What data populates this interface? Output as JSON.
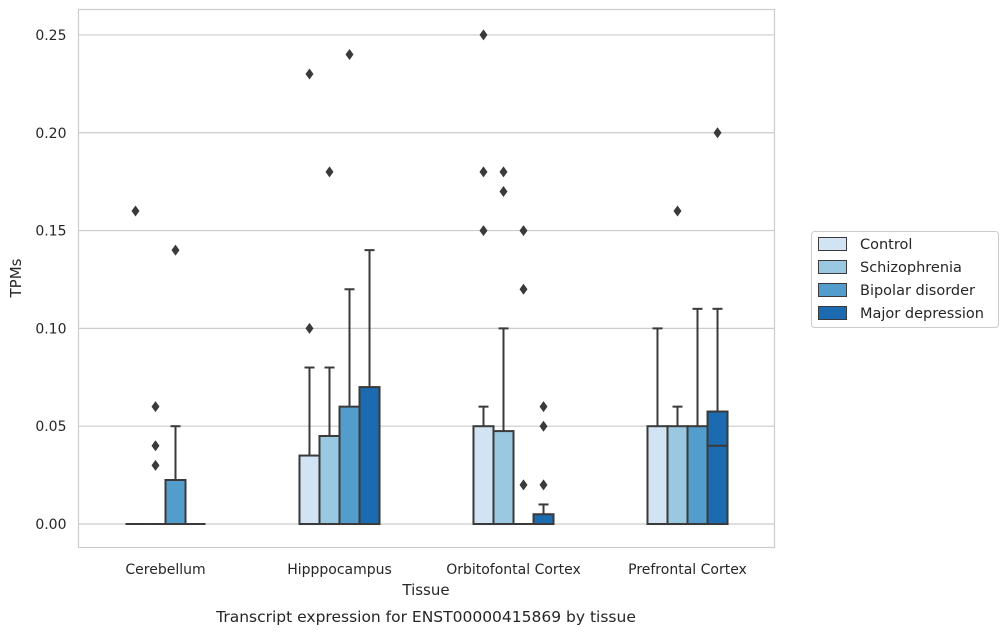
{
  "chart_data": {
    "type": "box",
    "caption": "Transcript expression for ENST00000415869 by tissue",
    "xlabel": "Tissue",
    "ylabel": "TPMs",
    "ylim": [
      -0.012,
      0.263
    ],
    "yticks": [
      "0.00",
      "0.05",
      "0.10",
      "0.15",
      "0.20",
      "0.25"
    ],
    "ytick_values": [
      0,
      0.05,
      0.1,
      0.15,
      0.2,
      0.25
    ],
    "grid": true,
    "legend_position": "right",
    "categories": [
      "Cerebellum",
      "Hipppocampus",
      "Orbitofontal Cortex",
      "Prefrontal Cortex"
    ],
    "series": [
      {
        "name": "Control",
        "color": "#d2e3f3",
        "boxes": [
          {
            "q1": 0,
            "median": 0,
            "q3": 0,
            "whislo": 0,
            "whishi": 0,
            "fliers": [
              0.16
            ]
          },
          {
            "q1": 0,
            "median": 0,
            "q3": 0.035,
            "whislo": 0,
            "whishi": 0.08,
            "fliers": [
              0.1,
              0.23
            ]
          },
          {
            "q1": 0,
            "median": 0,
            "q3": 0.05,
            "whislo": 0,
            "whishi": 0.06,
            "fliers": [
              0.15,
              0.18,
              0.25
            ]
          },
          {
            "q1": 0,
            "median": 0,
            "q3": 0.05,
            "whislo": 0,
            "whishi": 0.1,
            "fliers": []
          }
        ]
      },
      {
        "name": "Schizophrenia",
        "color": "#9ac8e0",
        "boxes": [
          {
            "q1": 0,
            "median": 0,
            "q3": 0,
            "whislo": 0,
            "whishi": 0,
            "fliers": [
              0.03,
              0.04,
              0.06
            ]
          },
          {
            "q1": 0,
            "median": 0,
            "q3": 0.045,
            "whislo": 0,
            "whishi": 0.08,
            "fliers": [
              0.18
            ]
          },
          {
            "q1": 0,
            "median": 0,
            "q3": 0.0475,
            "whislo": 0,
            "whishi": 0.1,
            "fliers": [
              0.17,
              0.18
            ]
          },
          {
            "q1": 0,
            "median": 0,
            "q3": 0.05,
            "whislo": 0,
            "whishi": 0.06,
            "fliers": [
              0.16
            ]
          }
        ]
      },
      {
        "name": "Bipolar disorder",
        "color": "#529dcc",
        "boxes": [
          {
            "q1": 0,
            "median": 0,
            "q3": 0.0225,
            "whislo": 0,
            "whishi": 0.05,
            "fliers": [
              0.14
            ]
          },
          {
            "q1": 0,
            "median": 0,
            "q3": 0.06,
            "whislo": 0,
            "whishi": 0.12,
            "fliers": [
              0.24
            ]
          },
          {
            "q1": 0,
            "median": 0,
            "q3": 0,
            "whislo": 0,
            "whishi": 0,
            "fliers": [
              0.02,
              0.12,
              0.15
            ]
          },
          {
            "q1": 0,
            "median": 0,
            "q3": 0.05,
            "whislo": 0,
            "whishi": 0.11,
            "fliers": []
          }
        ]
      },
      {
        "name": "Major depression",
        "color": "#1c6aaf",
        "boxes": [
          {
            "q1": 0,
            "median": 0,
            "q3": 0,
            "whislo": 0,
            "whishi": 0,
            "fliers": []
          },
          {
            "q1": 0,
            "median": 0,
            "q3": 0.07,
            "whislo": 0,
            "whishi": 0.14,
            "fliers": []
          },
          {
            "q1": 0,
            "median": 0,
            "q3": 0.005,
            "whislo": 0,
            "whishi": 0.01,
            "fliers": [
              0.02,
              0.05,
              0.06
            ]
          },
          {
            "q1": 0,
            "median": 0.04,
            "q3": 0.0575,
            "whislo": 0,
            "whishi": 0.11,
            "fliers": [
              0.2
            ]
          }
        ]
      }
    ]
  }
}
